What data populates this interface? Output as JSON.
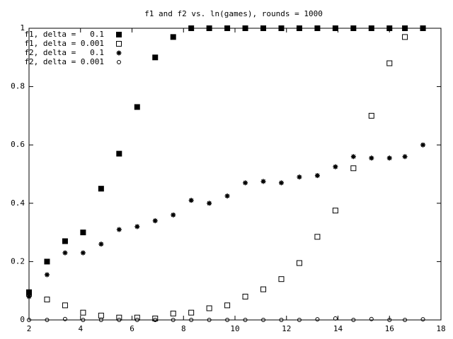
{
  "chart_data": {
    "type": "scatter",
    "title": "f1 and f2 vs. ln(games), rounds = 1000",
    "x": [
      2.0,
      2.7,
      3.4,
      4.1,
      4.8,
      5.5,
      6.2,
      6.9,
      7.6,
      8.3,
      9.0,
      9.7,
      10.4,
      11.1,
      11.8,
      12.5,
      13.2,
      13.9,
      14.6,
      15.3,
      16.0,
      16.6,
      17.3
    ],
    "series": [
      {
        "name": "f1, delta =   0.1",
        "color": "#000000",
        "marker": "filled-square",
        "values": [
          0.095,
          0.2,
          0.27,
          0.3,
          0.45,
          0.57,
          0.73,
          0.9,
          0.97,
          1,
          1,
          1,
          1,
          1,
          1,
          1,
          1,
          1,
          1,
          1,
          1,
          1,
          1
        ]
      },
      {
        "name": "f1, delta = 0.001",
        "color": "#000000",
        "marker": "open-square",
        "values": [
          0.09,
          0.07,
          0.05,
          0.025,
          0.015,
          0.008,
          0.008,
          0.005,
          0.022,
          0.025,
          0.04,
          0.05,
          0.08,
          0.105,
          0.14,
          0.195,
          0.285,
          0.375,
          0.52,
          0.7,
          0.88,
          0.97,
          1
        ]
      },
      {
        "name": "f2, delta =   0.1",
        "color": "#000000",
        "marker": "star",
        "values": [
          0.08,
          0.155,
          0.23,
          0.23,
          0.26,
          0.31,
          0.32,
          0.34,
          0.36,
          0.41,
          0.4,
          0.425,
          0.47,
          0.475,
          0.47,
          0.49,
          0.495,
          0.525,
          0.56,
          0.555,
          0.555,
          0.56,
          0.6
        ]
      },
      {
        "name": "f2, delta = 0.001",
        "color": "#000000",
        "marker": "open-circle",
        "values": [
          0,
          0,
          0.003,
          0,
          0,
          0,
          0,
          0,
          0,
          0,
          0,
          0,
          0,
          0,
          0,
          0,
          0.002,
          0.005,
          0,
          0.003,
          0,
          0,
          0.002
        ]
      }
    ],
    "xlim": [
      2,
      18
    ],
    "xticks": [
      2,
      4,
      6,
      8,
      10,
      12,
      14,
      16,
      18
    ],
    "ylim": [
      0,
      1
    ],
    "yticks": [
      0,
      0.2,
      0.4,
      0.6,
      0.8,
      1
    ],
    "grid": false,
    "legend": "top-left"
  }
}
